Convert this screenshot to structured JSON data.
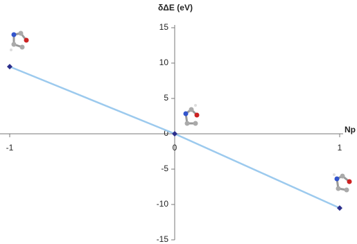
{
  "chart_data": {
    "type": "line",
    "y_label": "δΔE (eV)",
    "x_label": "Np",
    "x": [
      -1,
      0,
      1
    ],
    "series": [
      {
        "name": null,
        "color": "#9ccaee",
        "marker_color": "#2b2f8c",
        "values": [
          9.5,
          0,
          -10.5
        ]
      }
    ],
    "xlim": [
      -1,
      1
    ],
    "xticks": [
      -1,
      0,
      1
    ],
    "ylim": [
      -15,
      15
    ],
    "yticks": [
      15,
      10,
      5,
      0,
      -5,
      -10,
      -15
    ]
  }
}
